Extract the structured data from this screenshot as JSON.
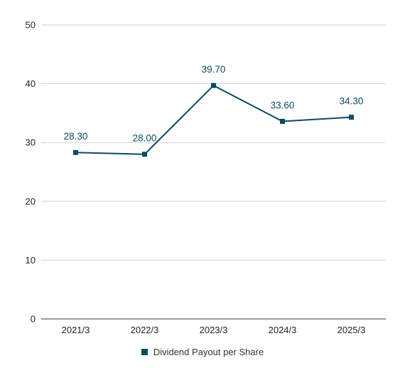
{
  "chart_data": {
    "type": "line",
    "categories": [
      "2021/3",
      "2022/3",
      "2023/3",
      "2024/3",
      "2025/3"
    ],
    "series": [
      {
        "name": "Dividend Payout per Share",
        "values": [
          28.3,
          28.0,
          39.7,
          33.6,
          34.3
        ],
        "data_labels": [
          "28.30",
          "28.00",
          "39.70",
          "33.60",
          "34.30"
        ],
        "color": "#0b4a63"
      }
    ],
    "y_ticks": [
      "0",
      "10",
      "20",
      "30",
      "40",
      "50"
    ],
    "ylim": [
      0,
      50
    ],
    "grid": true,
    "legend_position": "bottom",
    "title": "",
    "xlabel": "",
    "ylabel": ""
  }
}
